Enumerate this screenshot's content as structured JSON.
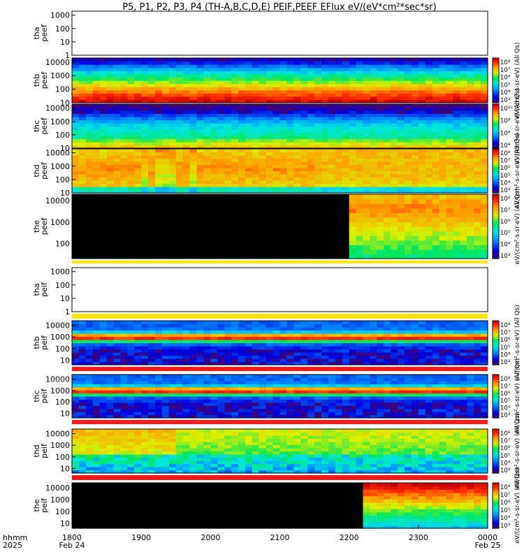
{
  "chart_data": {
    "type": "heatmap",
    "title": "P5, P1, P2, P3, P4 (TH-A,B,C,D,E) PEIF,PEEF EFlux eV/(eV*cm²*sec*sr)",
    "x_axis": {
      "label_line1": "hhmm",
      "label_line2": "2025",
      "ticks": [
        {
          "label": "1800",
          "sub": "Feb 24",
          "hour": 0
        },
        {
          "label": "1900",
          "sub": "",
          "hour": 1
        },
        {
          "label": "2000",
          "sub": "",
          "hour": 2
        },
        {
          "label": "2100",
          "sub": "",
          "hour": 3
        },
        {
          "label": "2200",
          "sub": "",
          "hour": 4
        },
        {
          "label": "2300",
          "sub": "",
          "hour": 5
        },
        {
          "label": "0000",
          "sub": "Feb 25",
          "hour": 6
        }
      ],
      "range_hours": [
        0,
        6
      ]
    },
    "panels": [
      {
        "id": "tha_peef",
        "probe": "tha",
        "species": "peef",
        "empty": true,
        "yticks": [
          "1000",
          "100",
          "10",
          "1"
        ],
        "ylog": [
          0,
          3.3
        ]
      },
      {
        "id": "thb_peef",
        "probe": "thb",
        "species": "peef",
        "empty": false,
        "yticks": [
          "10000",
          "1000",
          "100",
          "10"
        ],
        "ylog": [
          1,
          4.3
        ],
        "cmap": "hot",
        "colorbar": {
          "label": "eV/(cm²-s-sr-eV) (All Qs)",
          "ticks": [
            "10⁸",
            "10⁷",
            "10⁶",
            "10⁵",
            "10⁴",
            "10³"
          ]
        }
      },
      {
        "id": "thc_peef",
        "probe": "thc",
        "species": "peef",
        "empty": false,
        "yticks": [
          "10000",
          "1000",
          "100",
          "10"
        ],
        "ylog": [
          1,
          4.3
        ],
        "cmap": "mid",
        "colorbar": {
          "label": "eV/(cm²-s-sr-eV) (All Qs)",
          "ticks": [
            "10¹⁰",
            "10⁸",
            "10⁶",
            "10⁴"
          ]
        }
      },
      {
        "id": "thd_peef",
        "probe": "thd",
        "species": "peef",
        "empty": false,
        "yticks": [
          "10000",
          "1000",
          "100",
          "10"
        ],
        "ylog": [
          1,
          4.3
        ],
        "cmap": "thd",
        "colorbar": {
          "label": "eV/(cm²-s-sr-eV) (All Qs)",
          "ticks": [
            "10⁸",
            "10⁷",
            "10⁶",
            "10⁵",
            "10⁴",
            "10³"
          ]
        }
      },
      {
        "id": "the_peef",
        "probe": "the",
        "species": "peef",
        "empty": false,
        "yticks": [
          "10000",
          "1000",
          "100"
        ],
        "ylog": [
          1.3,
          4.3
        ],
        "cmap": "the",
        "data_start_hour": 4.05,
        "colorbar": {
          "label": "eV/(cm²-s-sr-eV) (All Qs)",
          "ticks": [
            "10⁸",
            "10⁷",
            "10⁶",
            "10⁵",
            "10⁴",
            "10³"
          ]
        }
      },
      {
        "id": "tha_peif",
        "probe": "tha",
        "species": "peif",
        "empty": true,
        "yticks": [
          "1000",
          "100",
          "10",
          "1"
        ],
        "ylog": [
          0,
          3.3
        ]
      },
      {
        "id": "thb_peif",
        "probe": "thb",
        "species": "peif",
        "empty": false,
        "yticks": [
          "10000",
          "1000",
          "100",
          "10"
        ],
        "ylog": [
          0.6,
          4.4
        ],
        "cmap": "ion",
        "colorbar": {
          "label": "eV/(cm²-s-sr-eV) (All Qs)",
          "ticks": [
            "10⁸",
            "10⁷",
            "10⁶",
            "10⁵",
            "10⁴",
            "10³"
          ]
        }
      },
      {
        "id": "thc_peif",
        "probe": "thc",
        "species": "peif",
        "empty": false,
        "yticks": [
          "10000",
          "1000",
          "100",
          "10"
        ],
        "ylog": [
          0.6,
          4.4
        ],
        "cmap": "ion",
        "colorbar": {
          "label": "eV/(cm²-s-sr-eV) (All Qs)",
          "ticks": [
            "10⁸",
            "10⁷",
            "10⁶",
            "10⁵",
            "10⁴",
            "10³"
          ]
        }
      },
      {
        "id": "thd_peif",
        "probe": "thd",
        "species": "peif",
        "empty": false,
        "yticks": [
          "10000",
          "1000",
          "100",
          "10"
        ],
        "ylog": [
          0.6,
          4.4
        ],
        "cmap": "ionthd",
        "colorbar": {
          "label": "eV/(cm²-s-sr-eV) (All Qs)",
          "ticks": [
            "10⁸",
            "10⁷",
            "10⁶",
            "10⁵",
            "10⁴",
            "10³"
          ]
        }
      },
      {
        "id": "the_peif",
        "probe": "the",
        "species": "peif",
        "empty": false,
        "yticks": [
          "10000",
          "1000",
          "100",
          "10"
        ],
        "ylog": [
          0.6,
          4.4
        ],
        "cmap": "ionthe",
        "data_start_hour": 4.25,
        "colorbar": {
          "label": "eV/(cm²-s-sr-eV) (All Qs)",
          "ticks": [
            "10⁸",
            "10⁷",
            "10⁶",
            "10⁵",
            "10⁴",
            "10³"
          ]
        }
      }
    ]
  }
}
